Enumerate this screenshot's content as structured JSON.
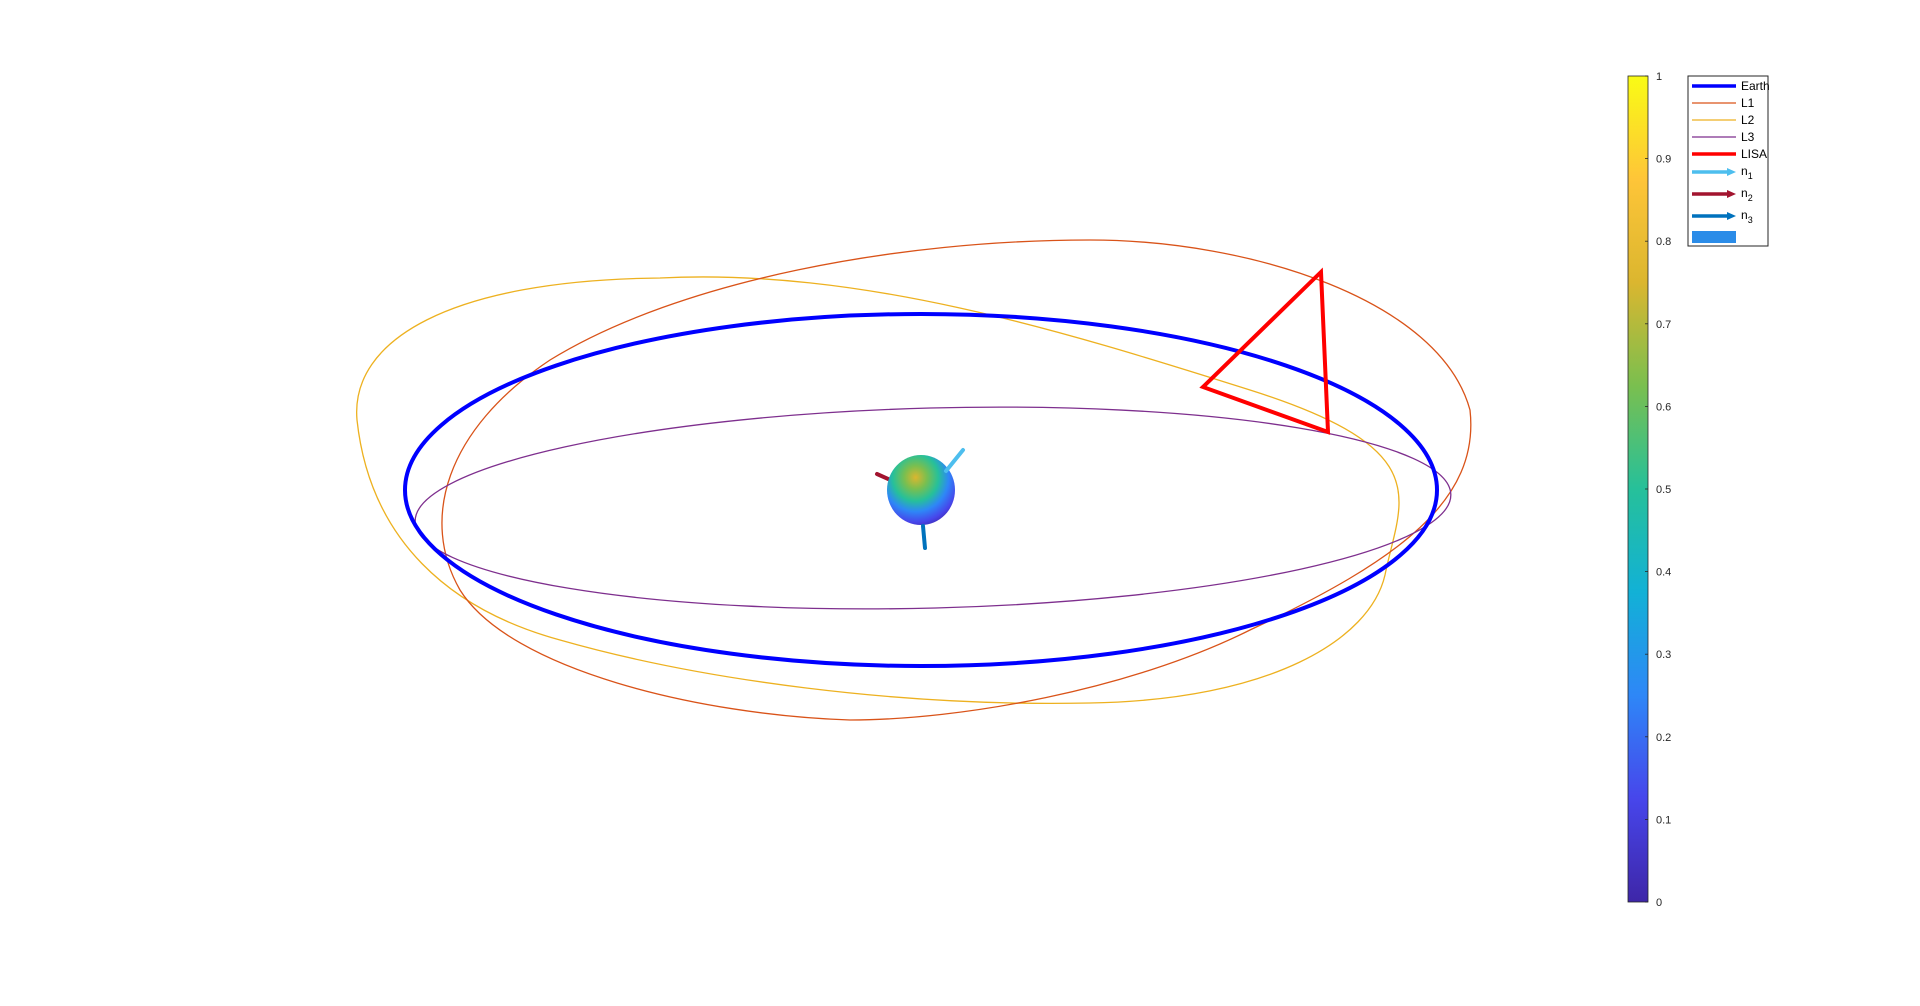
{
  "legend": {
    "entries": [
      {
        "key": "earth",
        "label": "Earth",
        "sub": "",
        "color": "#0000ff",
        "kind": "line-thick"
      },
      {
        "key": "l1",
        "label": "L1",
        "sub": "",
        "color": "#d95319",
        "kind": "line"
      },
      {
        "key": "l2",
        "label": "L2",
        "sub": "",
        "color": "#edb120",
        "kind": "line"
      },
      {
        "key": "l3",
        "label": "L3",
        "sub": "",
        "color": "#7e2f8e",
        "kind": "line"
      },
      {
        "key": "lisa",
        "label": "LISA",
        "sub": "",
        "color": "#ff0000",
        "kind": "line-thick"
      },
      {
        "key": "n1",
        "label": "n",
        "sub": "1",
        "color": "#4dbeee",
        "kind": "arrow"
      },
      {
        "key": "n2",
        "label": "n",
        "sub": "2",
        "color": "#a2142f",
        "kind": "arrow"
      },
      {
        "key": "n3",
        "label": "n",
        "sub": "3",
        "color": "#0072bd",
        "kind": "arrow"
      },
      {
        "key": "sphere",
        "label": "",
        "sub": "",
        "color": "#2b8ce8",
        "kind": "patch"
      }
    ]
  },
  "colorbar": {
    "min": 0,
    "max": 1,
    "ticks": [
      {
        "value": 0,
        "label": "0"
      },
      {
        "value": 0.1,
        "label": "0.1"
      },
      {
        "value": 0.2,
        "label": "0.2"
      },
      {
        "value": 0.3,
        "label": "0.3"
      },
      {
        "value": 0.4,
        "label": "0.4"
      },
      {
        "value": 0.5,
        "label": "0.5"
      },
      {
        "value": 0.6,
        "label": "0.6"
      },
      {
        "value": 0.7,
        "label": "0.7"
      },
      {
        "value": 0.8,
        "label": "0.8"
      },
      {
        "value": 0.9,
        "label": "0.9"
      },
      {
        "value": 1,
        "label": "1"
      }
    ],
    "colormap": [
      "#3e26a8",
      "#4746eb",
      "#2e87f7",
      "#12b1d6",
      "#26c09a",
      "#7abf4f",
      "#dbb62f",
      "#fec538",
      "#f9fb15"
    ]
  },
  "scene": {
    "orbit_colors": {
      "earth": "#0000ff",
      "l1": "#d95319",
      "l2": "#edb120",
      "l3": "#7e2f8e",
      "lisa": "#ff0000"
    },
    "vector_colors": {
      "n1": "#4dbeee",
      "n2": "#a2142f",
      "n3": "#0072bd"
    }
  }
}
